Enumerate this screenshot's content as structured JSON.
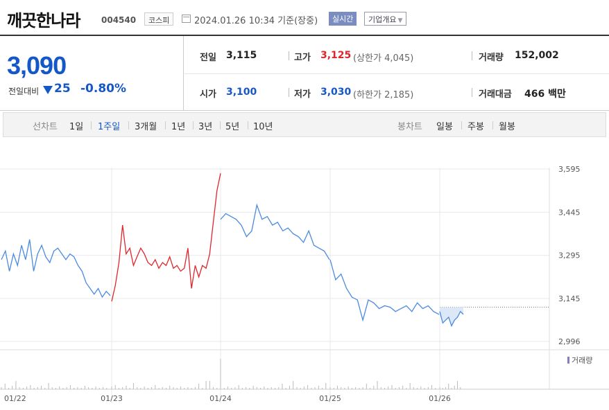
{
  "header": {
    "stock_name": "깨끗한나라",
    "stock_code": "004540",
    "market": "코스피",
    "datetime": "2024.01.26 10:34",
    "basis": "기준(장중)",
    "live_label": "실시간",
    "overview_label": "기업개요"
  },
  "price": {
    "current": "3,090",
    "prev_label": "전일대비",
    "diff": "25",
    "rate": "-0.80%"
  },
  "stats": {
    "prev_close_label": "전일",
    "prev_close": "3,115",
    "high_label": "고가",
    "high": "3,125",
    "upper_limit": "(상한가 4,045)",
    "volume_label": "거래량",
    "volume": "152,002",
    "open_label": "시가",
    "open": "3,100",
    "low_label": "저가",
    "low": "3,030",
    "lower_limit": "(하한가 2,185)",
    "amount_label": "거래대금",
    "amount": "466 백만"
  },
  "periods": {
    "line_label": "선차트",
    "line_items": [
      "1일",
      "1주일",
      "3개월",
      "1년",
      "3년",
      "5년",
      "10년"
    ],
    "line_active": "1주일",
    "candle_label": "봉차트",
    "candle_items": [
      "일봉",
      "주봉",
      "월봉"
    ]
  },
  "colors": {
    "up": "#e0252a",
    "down": "#1457c8",
    "line": "#4a8ae0",
    "accent": "#7a8cc0"
  },
  "chart_data": {
    "type": "line",
    "x_tick_labels": [
      "01/22",
      "01/23",
      "01/24",
      "01/25",
      "01/26"
    ],
    "y_tick_labels": [
      "3,595",
      "3,445",
      "3,295",
      "3,145",
      "2,996"
    ],
    "y_ticks": [
      3595,
      3445,
      3295,
      3145,
      2996
    ],
    "ylim": [
      2996,
      3595
    ],
    "prev_close": 3115,
    "volume_legend": "거래량",
    "series": [
      {
        "day": "01/22",
        "color": "#4a8ae0",
        "values": [
          3280,
          3310,
          3240,
          3300,
          3260,
          3330,
          3280,
          3350,
          3240,
          3300,
          3330,
          3290,
          3270,
          3310,
          3320,
          3300,
          3280,
          3300,
          3290,
          3260,
          3240,
          3200,
          3180,
          3160,
          3180,
          3150,
          3170,
          3155
        ]
      },
      {
        "day": "01/23",
        "color": "#e0252a",
        "values": [
          3135,
          3190,
          3270,
          3400,
          3300,
          3320,
          3260,
          3290,
          3320,
          3300,
          3270,
          3260,
          3280,
          3250,
          3270,
          3260,
          3290,
          3250,
          3260,
          3240,
          3250,
          3320,
          3180,
          3260,
          3220,
          3260,
          3250,
          3300,
          3410,
          3520,
          3580
        ]
      },
      {
        "day": "01/24",
        "color": "#4a8ae0",
        "values": [
          3420,
          3440,
          3430,
          3420,
          3400,
          3360,
          3380,
          3470,
          3420,
          3430,
          3400,
          3410,
          3380,
          3390,
          3370,
          3360,
          3340,
          3380,
          3330,
          3320,
          3310,
          3280
        ]
      },
      {
        "day": "01/25",
        "color": "#4a8ae0",
        "values": [
          3280,
          3210,
          3230,
          3180,
          3150,
          3140,
          3070,
          3140,
          3130,
          3110,
          3120,
          3115,
          3100,
          3110,
          3120,
          3100,
          3130,
          3110,
          3120,
          3100,
          3090
        ]
      },
      {
        "day": "01/26",
        "color": "#4a8ae0",
        "values": [
          3100,
          3060,
          3070,
          3080,
          3050,
          3070,
          3080,
          3100,
          3090
        ]
      }
    ]
  }
}
